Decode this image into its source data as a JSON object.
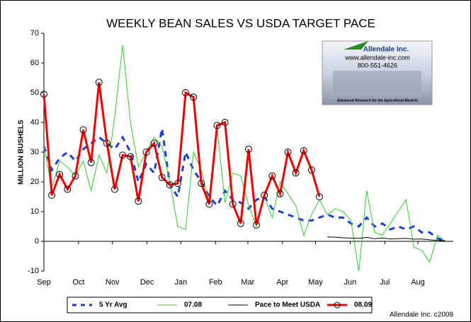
{
  "chart_data": {
    "type": "line",
    "title": "WEEKLY BEAN SALES VS USDA TARGET PACE",
    "y_label": "MILLION BUSHELS",
    "footer": "Allendale Inc. c2009",
    "logo": {
      "name": "Allendale Inc.",
      "url": "www.allendale-inc.com",
      "phone": "800-551-4626",
      "tagline": "Advanced Research for the Agricultural Markets"
    },
    "x": [
      0,
      1,
      2,
      3,
      4,
      5,
      6,
      7,
      8,
      9,
      10,
      11,
      12,
      13,
      14,
      15,
      16,
      17,
      18,
      19,
      20,
      21,
      22,
      23,
      24,
      25,
      26,
      27,
      28,
      29,
      30,
      31,
      32,
      33,
      34,
      35,
      36,
      37,
      38,
      39,
      40,
      41,
      42,
      43,
      44,
      45,
      46,
      47,
      48,
      49,
      50,
      51
    ],
    "xlim": [
      0,
      52
    ],
    "xticks": [
      {
        "value": 0,
        "label": "Sep"
      },
      {
        "value": 4.4,
        "label": "Oct"
      },
      {
        "value": 8.7,
        "label": "Nov"
      },
      {
        "value": 13.1,
        "label": "Dec"
      },
      {
        "value": 17.4,
        "label": "Jan"
      },
      {
        "value": 21.8,
        "label": "Feb"
      },
      {
        "value": 25.9,
        "label": "Mar"
      },
      {
        "value": 30.3,
        "label": "Apr"
      },
      {
        "value": 34.5,
        "label": "May"
      },
      {
        "value": 38.9,
        "label": "Jun"
      },
      {
        "value": 43.3,
        "label": "Jul"
      },
      {
        "value": 47.5,
        "label": "Aug"
      }
    ],
    "ylim": [
      -10,
      70
    ],
    "yticks": [
      -10,
      0,
      10,
      20,
      30,
      40,
      50,
      60,
      70
    ],
    "series": [
      {
        "name": "5 Yr Avg",
        "color": "#1f3fd0",
        "dashed": true,
        "width": 3,
        "values": [
          32,
          24,
          28,
          30,
          27,
          31,
          33,
          35,
          33,
          31,
          35,
          30,
          20,
          26,
          23,
          38,
          19,
          15,
          30,
          24,
          20,
          15,
          12,
          17,
          14,
          13,
          11,
          14,
          15,
          11,
          10,
          9,
          8,
          7,
          7,
          8,
          9,
          8,
          8,
          6,
          5,
          8,
          5,
          6,
          4,
          5,
          4,
          5,
          3,
          3,
          1,
          0
        ]
      },
      {
        "name": "07.08",
        "color": "#33cc33",
        "dashed": false,
        "width": 1,
        "values": [
          32,
          18,
          27,
          25,
          22,
          27,
          17,
          29,
          23,
          42,
          66,
          40,
          25,
          30,
          35,
          32,
          20,
          5,
          4,
          30,
          24,
          13,
          38,
          13,
          23,
          22,
          12,
          5,
          15,
          8,
          20,
          16,
          12,
          2,
          9,
          14,
          9,
          11,
          10,
          7,
          -10,
          17,
          3,
          2,
          6,
          10,
          14,
          -2,
          -3,
          -7,
          2,
          0
        ]
      },
      {
        "name": "Pace to Meet USDA",
        "color": "#000000",
        "dashed": false,
        "width": 1,
        "values": [
          null,
          null,
          null,
          null,
          null,
          null,
          null,
          null,
          null,
          null,
          null,
          null,
          null,
          null,
          null,
          null,
          null,
          null,
          null,
          null,
          null,
          null,
          null,
          null,
          null,
          null,
          null,
          null,
          null,
          null,
          null,
          null,
          null,
          null,
          null,
          null,
          1.5,
          1.4,
          1.2,
          1.1,
          1.0,
          1.3,
          0.9,
          1.1,
          0.8,
          0.9,
          1.0,
          0.7,
          0.8,
          0.5,
          0.3,
          0.2
        ]
      },
      {
        "name": "08.09",
        "color": "#ee0000",
        "dashed": false,
        "width": 3,
        "marker": "circle",
        "values": [
          49.5,
          15.5,
          22.5,
          17.5,
          22,
          37.5,
          26.5,
          53.5,
          33,
          17.5,
          29,
          28.5,
          13.5,
          30,
          33,
          21.5,
          19,
          19.5,
          50,
          48.5,
          19.5,
          12.5,
          39,
          40,
          12.5,
          6,
          31,
          5.5,
          15.5,
          22,
          16,
          30,
          23,
          30.5,
          24,
          15,
          null,
          null,
          null,
          null,
          null,
          null,
          null,
          null,
          null,
          null,
          null,
          null,
          null,
          null,
          null,
          null
        ]
      }
    ]
  }
}
